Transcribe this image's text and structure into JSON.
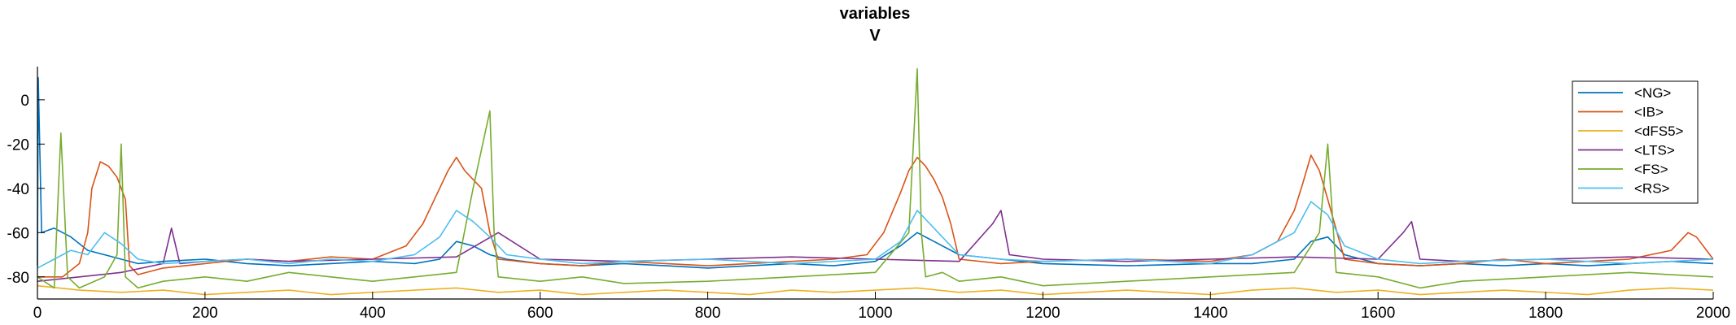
{
  "chart_data": {
    "type": "line",
    "title": "variables",
    "subtitle": "V",
    "xlabel": "",
    "ylabel": "",
    "xlim": [
      0,
      2000
    ],
    "ylim": [
      -90,
      15
    ],
    "xticks": [
      0,
      200,
      400,
      600,
      800,
      1000,
      1200,
      1400,
      1600,
      1800,
      2000
    ],
    "yticks": [
      -80,
      -60,
      -40,
      -20,
      0
    ],
    "grid": false,
    "legend_position": "top-right",
    "series": [
      {
        "name": "<NG>",
        "color": "#0072BD",
        "x": [
          0,
          1,
          5,
          20,
          40,
          60,
          80,
          100,
          120,
          150,
          200,
          250,
          300,
          350,
          400,
          450,
          480,
          500,
          520,
          540,
          560,
          600,
          650,
          700,
          750,
          800,
          850,
          900,
          950,
          1000,
          1030,
          1050,
          1070,
          1100,
          1150,
          1200,
          1300,
          1400,
          1450,
          1500,
          1520,
          1540,
          1560,
          1600,
          1650,
          1700,
          1750,
          1800,
          1850,
          1900,
          1950,
          2000
        ],
        "y": [
          -75,
          10,
          -60,
          -58,
          -62,
          -68,
          -70,
          -72,
          -74,
          -73,
          -72,
          -74,
          -75,
          -74,
          -73,
          -74,
          -72,
          -64,
          -66,
          -70,
          -72,
          -74,
          -75,
          -74,
          -75,
          -76,
          -75,
          -74,
          -75,
          -73,
          -66,
          -60,
          -64,
          -70,
          -72,
          -74,
          -75,
          -74,
          -74,
          -72,
          -64,
          -62,
          -70,
          -74,
          -75,
          -74,
          -75,
          -74,
          -75,
          -74,
          -73,
          -74
        ]
      },
      {
        "name": "<IB>",
        "color": "#D95319",
        "x": [
          0,
          10,
          30,
          50,
          60,
          65,
          75,
          85,
          95,
          105,
          110,
          120,
          150,
          200,
          250,
          300,
          350,
          400,
          440,
          460,
          480,
          490,
          500,
          510,
          520,
          530,
          540,
          550,
          600,
          650,
          700,
          750,
          800,
          850,
          900,
          950,
          990,
          1010,
          1030,
          1040,
          1050,
          1060,
          1070,
          1080,
          1090,
          1100,
          1150,
          1200,
          1300,
          1400,
          1450,
          1480,
          1500,
          1510,
          1520,
          1530,
          1540,
          1560,
          1600,
          1650,
          1700,
          1750,
          1800,
          1900,
          1950,
          1970,
          1980,
          2000
        ],
        "y": [
          -80,
          -80,
          -80,
          -74,
          -60,
          -40,
          -28,
          -30,
          -35,
          -45,
          -75,
          -79,
          -76,
          -74,
          -72,
          -73,
          -71,
          -72,
          -66,
          -56,
          -40,
          -32,
          -26,
          -32,
          -36,
          -40,
          -60,
          -72,
          -74,
          -75,
          -73,
          -74,
          -75,
          -74,
          -73,
          -72,
          -70,
          -60,
          -42,
          -32,
          -26,
          -30,
          -36,
          -44,
          -56,
          -72,
          -74,
          -73,
          -72,
          -73,
          -70,
          -64,
          -50,
          -38,
          -25,
          -32,
          -45,
          -72,
          -74,
          -75,
          -74,
          -72,
          -74,
          -72,
          -68,
          -60,
          -62,
          -72
        ]
      },
      {
        "name": "<dFS5>",
        "color": "#EDB120",
        "x": [
          0,
          50,
          100,
          150,
          200,
          250,
          300,
          350,
          400,
          450,
          500,
          550,
          600,
          650,
          700,
          750,
          800,
          850,
          900,
          950,
          1000,
          1050,
          1100,
          1150,
          1200,
          1250,
          1300,
          1350,
          1400,
          1450,
          1500,
          1550,
          1600,
          1650,
          1700,
          1750,
          1800,
          1850,
          1900,
          1950,
          2000
        ],
        "y": [
          -84,
          -86,
          -87,
          -86,
          -88,
          -87,
          -86,
          -88,
          -87,
          -86,
          -85,
          -87,
          -86,
          -88,
          -87,
          -86,
          -87,
          -88,
          -86,
          -87,
          -86,
          -85,
          -87,
          -86,
          -88,
          -87,
          -86,
          -87,
          -88,
          -86,
          -85,
          -87,
          -86,
          -88,
          -87,
          -86,
          -87,
          -88,
          -86,
          -85,
          -86
        ]
      },
      {
        "name": "<LTS>",
        "color": "#7E2F8E",
        "x": [
          0,
          50,
          100,
          150,
          160,
          170,
          200,
          250,
          300,
          400,
          500,
          550,
          600,
          700,
          800,
          900,
          1000,
          1100,
          1140,
          1150,
          1160,
          1200,
          1300,
          1400,
          1500,
          1600,
          1630,
          1640,
          1650,
          1700,
          1800,
          1900,
          2000
        ],
        "y": [
          -82,
          -80,
          -78,
          -74,
          -58,
          -74,
          -73,
          -72,
          -73,
          -72,
          -71,
          -60,
          -72,
          -73,
          -72,
          -71,
          -72,
          -73,
          -56,
          -50,
          -70,
          -72,
          -73,
          -72,
          -71,
          -72,
          -60,
          -55,
          -72,
          -73,
          -72,
          -71,
          -72
        ]
      },
      {
        "name": "<FS>",
        "color": "#77AC30",
        "x": [
          0,
          20,
          28,
          36,
          50,
          80,
          95,
          100,
          105,
          120,
          150,
          200,
          250,
          300,
          350,
          400,
          450,
          500,
          520,
          540,
          545,
          550,
          600,
          650,
          700,
          800,
          900,
          1000,
          1040,
          1050,
          1055,
          1060,
          1080,
          1100,
          1150,
          1200,
          1300,
          1400,
          1500,
          1530,
          1540,
          1550,
          1600,
          1650,
          1700,
          1800,
          1900,
          2000
        ],
        "y": [
          -80,
          -85,
          -15,
          -80,
          -85,
          -80,
          -70,
          -20,
          -80,
          -85,
          -82,
          -80,
          -82,
          -78,
          -80,
          -82,
          -80,
          -78,
          -40,
          -5,
          -60,
          -80,
          -82,
          -80,
          -83,
          -82,
          -80,
          -78,
          -60,
          14,
          -60,
          -80,
          -78,
          -82,
          -80,
          -84,
          -82,
          -80,
          -78,
          -60,
          -20,
          -78,
          -80,
          -85,
          -82,
          -80,
          -78,
          -80
        ]
      },
      {
        "name": "<RS>",
        "color": "#4DBEEE",
        "x": [
          0,
          20,
          40,
          60,
          80,
          100,
          120,
          150,
          200,
          250,
          300,
          350,
          400,
          450,
          480,
          500,
          520,
          540,
          560,
          600,
          650,
          700,
          800,
          900,
          1000,
          1030,
          1050,
          1070,
          1100,
          1150,
          1200,
          1300,
          1400,
          1450,
          1500,
          1520,
          1540,
          1560,
          1600,
          1650,
          1700,
          1800,
          1900,
          2000
        ],
        "y": [
          -76,
          -72,
          -68,
          -70,
          -60,
          -65,
          -72,
          -74,
          -73,
          -72,
          -74,
          -72,
          -73,
          -70,
          -62,
          -50,
          -55,
          -62,
          -70,
          -72,
          -74,
          -73,
          -72,
          -74,
          -72,
          -64,
          -50,
          -58,
          -70,
          -72,
          -73,
          -72,
          -74,
          -70,
          -60,
          -46,
          -52,
          -66,
          -72,
          -74,
          -73,
          -72,
          -74,
          -72
        ]
      }
    ]
  }
}
